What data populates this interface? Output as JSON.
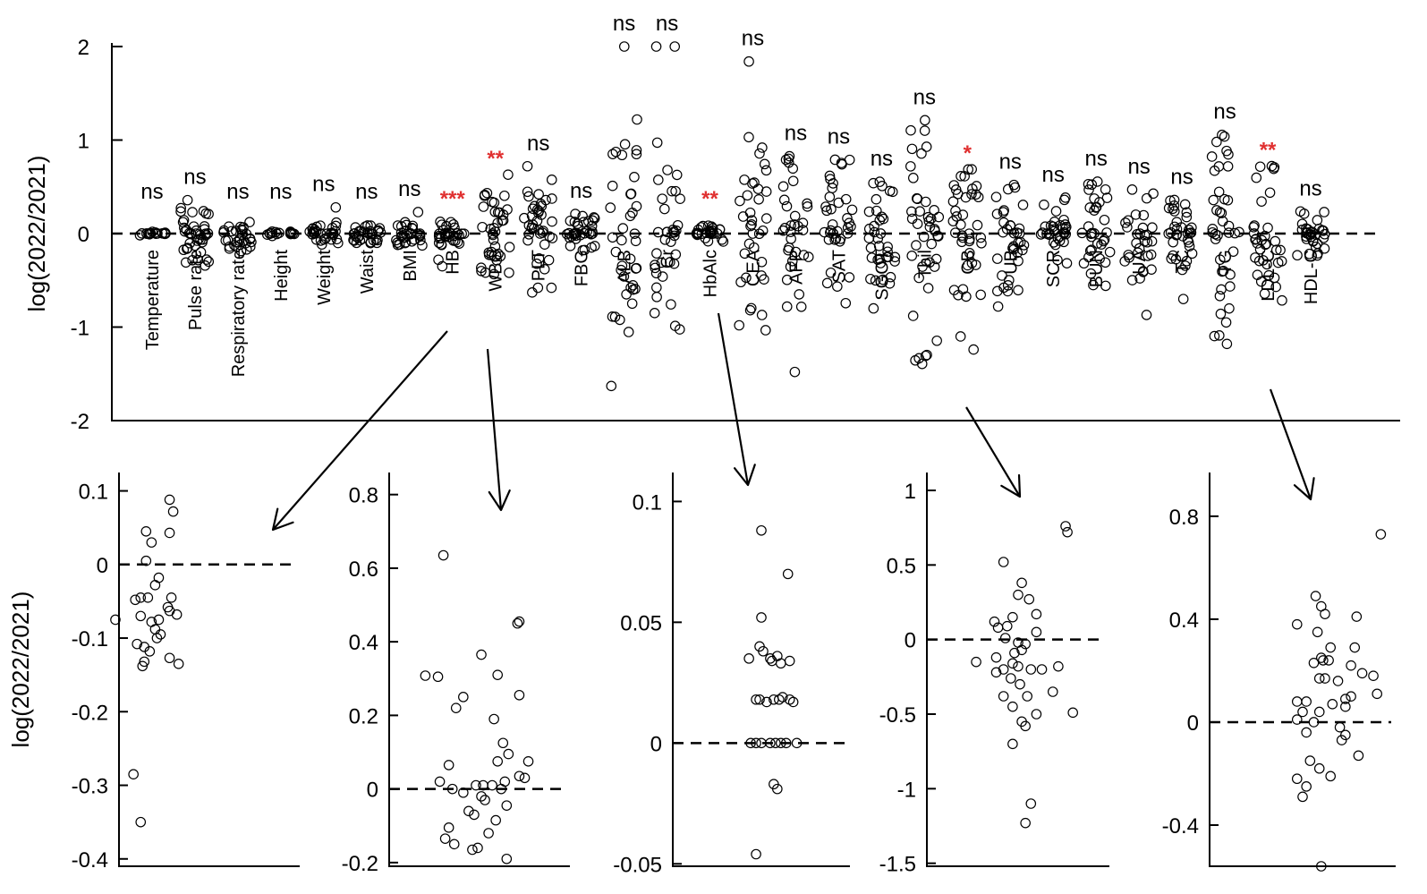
{
  "chart_data": [
    {
      "id": "main",
      "type": "scatter",
      "title": "",
      "ylabel": "log(2022/2021)",
      "xlabel": "",
      "ylim": [
        -2,
        2
      ],
      "yticks": [
        2,
        1,
        0,
        -1,
        -2
      ],
      "ytick_labels": [
        "2",
        "1",
        "0",
        "-1",
        "-2"
      ],
      "categories": [
        {
          "label": "Temperature",
          "sig": "ns",
          "spread": 0.02,
          "n": 16,
          "extra": []
        },
        {
          "label": "Pulse rate",
          "sig": "ns",
          "spread": 0.36,
          "n": 40,
          "extra": []
        },
        {
          "label": "Respiratory rate",
          "sig": "ns",
          "spread": 0.2,
          "n": 30,
          "extra": []
        },
        {
          "label": "Height",
          "sig": "ns",
          "spread": 0.03,
          "n": 16,
          "extra": []
        },
        {
          "label": "Weight",
          "sig": "ns",
          "spread": 0.12,
          "n": 30,
          "extra": [
            0.28
          ]
        },
        {
          "label": "Waist",
          "sig": "ns",
          "spread": 0.16,
          "n": 32,
          "extra": []
        },
        {
          "label": "BMI",
          "sig": "ns",
          "spread": 0.13,
          "n": 30,
          "extra": [
            0.23
          ]
        },
        {
          "label": "HB",
          "sig": "***",
          "spread": 0.13,
          "n": 32,
          "extra": [
            -0.35,
            -0.28
          ]
        },
        {
          "label": "WBC",
          "sig": "**",
          "spread": 0.45,
          "n": 36,
          "extra": [
            0.63
          ]
        },
        {
          "label": "PLT",
          "sig": "ns",
          "spread": 0.6,
          "n": 38,
          "extra": [
            0.72,
            -0.63
          ]
        },
        {
          "label": "FBG",
          "sig": "ns",
          "spread": 0.22,
          "n": 34,
          "extra": []
        },
        {
          "label": "ALB",
          "sig": "ns",
          "spread": 1.28,
          "n": 34,
          "extra": [
            2.0,
            1.22,
            0.85,
            -0.65,
            -1.63
          ]
        },
        {
          "label": "Cr",
          "sig": "ns",
          "spread": 1.05,
          "n": 34,
          "extra": [
            2.0,
            2.0,
            -0.85
          ]
        },
        {
          "label": "HbAlc",
          "sig": "**",
          "spread": 0.09,
          "n": 28,
          "extra": []
        },
        {
          "label": "CEA",
          "sig": "ns",
          "spread": 1.15,
          "n": 34,
          "extra": [
            1.84,
            -0.82
          ]
        },
        {
          "label": "AFP",
          "sig": "ns",
          "spread": 0.94,
          "n": 30,
          "extra": [
            0.8,
            -0.65,
            -1.48
          ]
        },
        {
          "label": "SAT",
          "sig": "ns",
          "spread": 0.85,
          "n": 36,
          "extra": []
        },
        {
          "label": "SGOT",
          "sig": "ns",
          "spread": 0.6,
          "n": 34,
          "extra": [
            -0.8
          ]
        },
        {
          "label": "Tbil",
          "sig": "ns",
          "spread": 1.43,
          "n": 40,
          "extra": [
            1.1,
            -0.88
          ]
        },
        {
          "label": "CB",
          "sig": "*",
          "spread": 0.75,
          "n": 38,
          "extra": [
            -1.1,
            -1.24
          ]
        },
        {
          "label": "UB",
          "sig": "ns",
          "spread": 0.65,
          "n": 34,
          "extra": [
            -0.78
          ]
        },
        {
          "label": "SCR",
          "sig": "ns",
          "spread": 0.4,
          "n": 32,
          "extra": []
        },
        {
          "label": "BUN",
          "sig": "ns",
          "spread": 0.58,
          "n": 34,
          "extra": []
        },
        {
          "label": "UA",
          "sig": "ns",
          "spread": 0.5,
          "n": 30,
          "extra": [
            -0.87
          ]
        },
        {
          "label": "TC",
          "sig": "ns",
          "spread": 0.4,
          "n": 34,
          "extra": [
            -0.7
          ]
        },
        {
          "label": "TG",
          "sig": "ns",
          "spread": 1.1,
          "n": 38,
          "extra": [
            -0.95,
            -1.18
          ]
        },
        {
          "label": "LDL-C",
          "sig": "**",
          "spread": 0.73,
          "n": 34,
          "extra": [
            -0.57
          ]
        },
        {
          "label": "HDL-C",
          "sig": "ns",
          "spread": 0.24,
          "n": 32,
          "extra": []
        }
      ],
      "zero_reference": 0
    },
    {
      "id": "HB",
      "type": "scatter",
      "ylabel": "log(2022/2021)",
      "ylim": [
        -0.41,
        0.125
      ],
      "yticks": [
        0.1,
        0,
        -0.1,
        -0.2,
        -0.3,
        -0.4
      ],
      "ytick_labels": [
        "0.1",
        "0",
        "-0.1",
        "-0.2",
        "-0.3",
        "-0.4"
      ],
      "points": [
        {
          "x": 0.28,
          "y": 0.088
        },
        {
          "x": 0.3,
          "y": 0.072
        },
        {
          "x": 0.15,
          "y": 0.045
        },
        {
          "x": 0.28,
          "y": 0.043
        },
        {
          "x": 0.18,
          "y": 0.03
        },
        {
          "x": 0.15,
          "y": 0.005
        },
        {
          "x": 0.22,
          "y": -0.018
        },
        {
          "x": 0.2,
          "y": -0.028
        },
        {
          "x": 0.09,
          "y": -0.048
        },
        {
          "x": 0.12,
          "y": -0.045
        },
        {
          "x": 0.16,
          "y": -0.045
        },
        {
          "x": 0.29,
          "y": -0.045
        },
        {
          "x": 0.27,
          "y": -0.058
        },
        {
          "x": 0.28,
          "y": -0.063
        },
        {
          "x": 0.32,
          "y": -0.068
        },
        {
          "x": 0.12,
          "y": -0.07
        },
        {
          "x": 0.18,
          "y": -0.078
        },
        {
          "x": 0.22,
          "y": -0.075
        },
        {
          "x": -0.02,
          "y": -0.075
        },
        {
          "x": 0.2,
          "y": -0.088
        },
        {
          "x": 0.23,
          "y": -0.095
        },
        {
          "x": 0.21,
          "y": -0.1
        },
        {
          "x": 0.1,
          "y": -0.108
        },
        {
          "x": 0.14,
          "y": -0.112
        },
        {
          "x": 0.17,
          "y": -0.118
        },
        {
          "x": 0.28,
          "y": -0.127
        },
        {
          "x": 0.33,
          "y": -0.135
        },
        {
          "x": 0.13,
          "y": -0.138
        },
        {
          "x": 0.14,
          "y": -0.132
        },
        {
          "x": 0.08,
          "y": -0.285
        },
        {
          "x": 0.12,
          "y": -0.35
        }
      ]
    },
    {
      "id": "WBC",
      "type": "scatter",
      "ylim": [
        -0.21,
        0.86
      ],
      "yticks": [
        0.8,
        0.6,
        0.4,
        0.2,
        0,
        -0.2
      ],
      "ytick_labels": [
        "0.8",
        "0.6",
        "0.4",
        "0.2",
        "0",
        "-0.2"
      ],
      "points": [
        {
          "x": 0.3,
          "y": 0.635
        },
        {
          "x": 0.72,
          "y": 0.455
        },
        {
          "x": 0.71,
          "y": 0.45
        },
        {
          "x": 0.51,
          "y": 0.365
        },
        {
          "x": 0.2,
          "y": 0.308
        },
        {
          "x": 0.27,
          "y": 0.305
        },
        {
          "x": 0.6,
          "y": 0.31
        },
        {
          "x": 0.72,
          "y": 0.255
        },
        {
          "x": 0.41,
          "y": 0.25
        },
        {
          "x": 0.37,
          "y": 0.22
        },
        {
          "x": 0.58,
          "y": 0.19
        },
        {
          "x": 0.63,
          "y": 0.125
        },
        {
          "x": 0.66,
          "y": 0.095
        },
        {
          "x": 0.6,
          "y": 0.075
        },
        {
          "x": 0.77,
          "y": 0.075
        },
        {
          "x": 0.33,
          "y": 0.065
        },
        {
          "x": 0.72,
          "y": 0.035
        },
        {
          "x": 0.75,
          "y": 0.03
        },
        {
          "x": 0.64,
          "y": 0.02
        },
        {
          "x": 0.48,
          "y": 0.01
        },
        {
          "x": 0.52,
          "y": 0.01
        },
        {
          "x": 0.57,
          "y": 0.01
        },
        {
          "x": 0.28,
          "y": 0.02
        },
        {
          "x": 0.35,
          "y": 0.0
        },
        {
          "x": 0.62,
          "y": 0.0
        },
        {
          "x": 0.41,
          "y": -0.01
        },
        {
          "x": 0.51,
          "y": -0.02
        },
        {
          "x": 0.53,
          "y": -0.03
        },
        {
          "x": 0.65,
          "y": -0.045
        },
        {
          "x": 0.44,
          "y": -0.06
        },
        {
          "x": 0.47,
          "y": -0.07
        },
        {
          "x": 0.59,
          "y": -0.085
        },
        {
          "x": 0.33,
          "y": -0.105
        },
        {
          "x": 0.55,
          "y": -0.12
        },
        {
          "x": 0.31,
          "y": -0.135
        },
        {
          "x": 0.36,
          "y": -0.15
        },
        {
          "x": 0.49,
          "y": -0.16
        },
        {
          "x": 0.46,
          "y": -0.165
        },
        {
          "x": 0.65,
          "y": -0.19
        }
      ]
    },
    {
      "id": "HbAlc",
      "type": "scatter",
      "ylim": [
        -0.051,
        0.112
      ],
      "yticks": [
        0.1,
        0.05,
        0,
        -0.05
      ],
      "ytick_labels": [
        "0.1",
        "0.05",
        "0",
        "-0.05"
      ],
      "points": [
        {
          "x": 0.5,
          "y": 0.088
        },
        {
          "x": 0.65,
          "y": 0.07
        },
        {
          "x": 0.5,
          "y": 0.052
        },
        {
          "x": 0.49,
          "y": 0.04
        },
        {
          "x": 0.51,
          "y": 0.038
        },
        {
          "x": 0.43,
          "y": 0.035
        },
        {
          "x": 0.59,
          "y": 0.036
        },
        {
          "x": 0.55,
          "y": 0.035
        },
        {
          "x": 0.56,
          "y": 0.034
        },
        {
          "x": 0.66,
          "y": 0.034
        },
        {
          "x": 0.61,
          "y": 0.033
        },
        {
          "x": 0.62,
          "y": 0.019
        },
        {
          "x": 0.47,
          "y": 0.018
        },
        {
          "x": 0.49,
          "y": 0.018
        },
        {
          "x": 0.53,
          "y": 0.017
        },
        {
          "x": 0.57,
          "y": 0.018
        },
        {
          "x": 0.6,
          "y": 0.018
        },
        {
          "x": 0.66,
          "y": 0.018
        },
        {
          "x": 0.68,
          "y": 0.017
        },
        {
          "x": 0.44,
          "y": 0.0
        },
        {
          "x": 0.47,
          "y": 0.0
        },
        {
          "x": 0.5,
          "y": 0.0
        },
        {
          "x": 0.55,
          "y": 0.0
        },
        {
          "x": 0.58,
          "y": 0.0
        },
        {
          "x": 0.61,
          "y": 0.0
        },
        {
          "x": 0.64,
          "y": 0.0
        },
        {
          "x": 0.7,
          "y": 0.0
        },
        {
          "x": 0.57,
          "y": -0.017
        },
        {
          "x": 0.59,
          "y": -0.019
        },
        {
          "x": 0.47,
          "y": -0.046
        }
      ]
    },
    {
      "id": "CB",
      "type": "scatter",
      "ylim": [
        -1.52,
        1.12
      ],
      "yticks": [
        1,
        0.5,
        0,
        -0.5,
        -1,
        -1.5
      ],
      "ytick_labels": [
        "1",
        "0.5",
        "0",
        "-0.5",
        "-1",
        "-1.5"
      ],
      "points": [
        {
          "x": 0.76,
          "y": 0.76
        },
        {
          "x": 0.77,
          "y": 0.72
        },
        {
          "x": 0.42,
          "y": 0.52
        },
        {
          "x": 0.52,
          "y": 0.38
        },
        {
          "x": 0.5,
          "y": 0.3
        },
        {
          "x": 0.56,
          "y": 0.27
        },
        {
          "x": 0.6,
          "y": 0.17
        },
        {
          "x": 0.47,
          "y": 0.15
        },
        {
          "x": 0.6,
          "y": 0.05
        },
        {
          "x": 0.37,
          "y": 0.12
        },
        {
          "x": 0.39,
          "y": 0.08
        },
        {
          "x": 0.44,
          "y": 0.09
        },
        {
          "x": 0.43,
          "y": 0.01
        },
        {
          "x": 0.5,
          "y": -0.02
        },
        {
          "x": 0.54,
          "y": -0.03
        },
        {
          "x": 0.52,
          "y": -0.07
        },
        {
          "x": 0.48,
          "y": -0.09
        },
        {
          "x": 0.38,
          "y": -0.12
        },
        {
          "x": 0.27,
          "y": -0.15
        },
        {
          "x": 0.47,
          "y": -0.16
        },
        {
          "x": 0.5,
          "y": -0.18
        },
        {
          "x": 0.42,
          "y": -0.2
        },
        {
          "x": 0.57,
          "y": -0.2
        },
        {
          "x": 0.63,
          "y": -0.2
        },
        {
          "x": 0.38,
          "y": -0.22
        },
        {
          "x": 0.72,
          "y": -0.18
        },
        {
          "x": 0.46,
          "y": -0.26
        },
        {
          "x": 0.51,
          "y": -0.3
        },
        {
          "x": 0.69,
          "y": -0.35
        },
        {
          "x": 0.42,
          "y": -0.38
        },
        {
          "x": 0.55,
          "y": -0.38
        },
        {
          "x": 0.47,
          "y": -0.45
        },
        {
          "x": 0.6,
          "y": -0.5
        },
        {
          "x": 0.54,
          "y": -0.58
        },
        {
          "x": 0.8,
          "y": -0.49
        },
        {
          "x": 0.52,
          "y": -0.55
        },
        {
          "x": 0.47,
          "y": -0.7
        },
        {
          "x": 0.57,
          "y": -1.1
        },
        {
          "x": 0.54,
          "y": -1.23
        }
      ]
    },
    {
      "id": "LDL-C",
      "type": "scatter",
      "ylim": [
        -0.56,
        0.97
      ],
      "yticks": [
        0.8,
        0.4,
        0,
        -0.4
      ],
      "ytick_labels": [
        "0.8",
        "0.4",
        "0",
        "-0.4"
      ],
      "points": [
        {
          "x": 0.92,
          "y": 0.73
        },
        {
          "x": 0.57,
          "y": 0.49
        },
        {
          "x": 0.6,
          "y": 0.45
        },
        {
          "x": 0.62,
          "y": 0.42
        },
        {
          "x": 0.79,
          "y": 0.41
        },
        {
          "x": 0.47,
          "y": 0.38
        },
        {
          "x": 0.58,
          "y": 0.35
        },
        {
          "x": 0.65,
          "y": 0.29
        },
        {
          "x": 0.78,
          "y": 0.29
        },
        {
          "x": 0.6,
          "y": 0.25
        },
        {
          "x": 0.61,
          "y": 0.24
        },
        {
          "x": 0.64,
          "y": 0.24
        },
        {
          "x": 0.56,
          "y": 0.23
        },
        {
          "x": 0.76,
          "y": 0.22
        },
        {
          "x": 0.82,
          "y": 0.19
        },
        {
          "x": 0.88,
          "y": 0.18
        },
        {
          "x": 0.59,
          "y": 0.17
        },
        {
          "x": 0.62,
          "y": 0.17
        },
        {
          "x": 0.69,
          "y": 0.16
        },
        {
          "x": 0.9,
          "y": 0.11
        },
        {
          "x": 0.76,
          "y": 0.1
        },
        {
          "x": 0.73,
          "y": 0.09
        },
        {
          "x": 0.47,
          "y": 0.08
        },
        {
          "x": 0.52,
          "y": 0.08
        },
        {
          "x": 0.66,
          "y": 0.07
        },
        {
          "x": 0.73,
          "y": 0.06
        },
        {
          "x": 0.5,
          "y": 0.04
        },
        {
          "x": 0.59,
          "y": 0.04
        },
        {
          "x": 0.47,
          "y": 0.01
        },
        {
          "x": 0.56,
          "y": 0.0
        },
        {
          "x": 0.52,
          "y": -0.04
        },
        {
          "x": 0.73,
          "y": -0.05
        },
        {
          "x": 0.71,
          "y": -0.07
        },
        {
          "x": 0.7,
          "y": -0.02
        },
        {
          "x": 0.8,
          "y": -0.13
        },
        {
          "x": 0.54,
          "y": -0.15
        },
        {
          "x": 0.59,
          "y": -0.18
        },
        {
          "x": 0.47,
          "y": -0.22
        },
        {
          "x": 0.65,
          "y": -0.21
        },
        {
          "x": 0.52,
          "y": -0.25
        },
        {
          "x": 0.5,
          "y": -0.29
        },
        {
          "x": 0.6,
          "y": -0.56
        }
      ]
    }
  ],
  "colors": {
    "ink": "#000000",
    "significant": "#e03030",
    "background": "#ffffff"
  }
}
